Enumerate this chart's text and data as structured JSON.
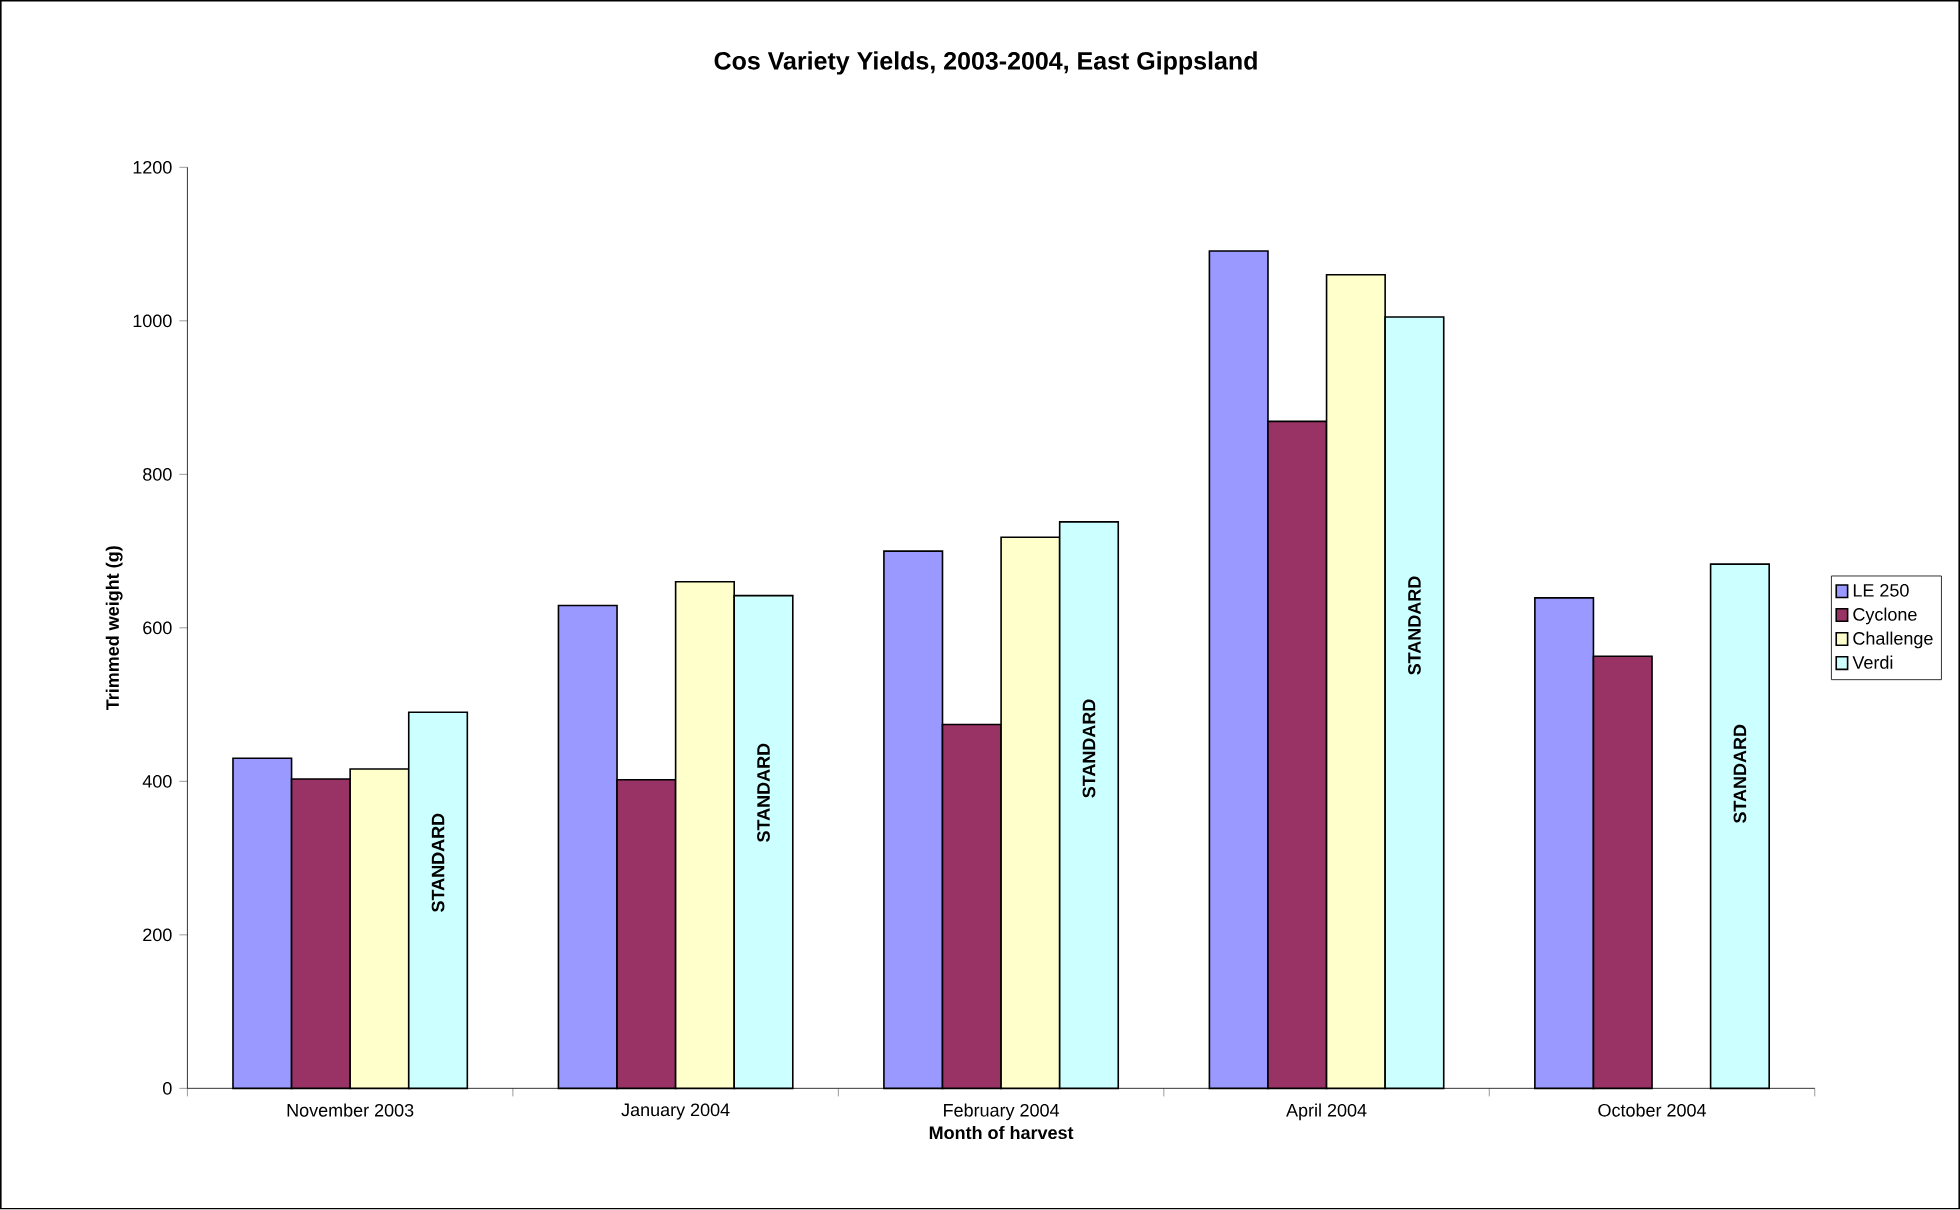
{
  "chart_data": {
    "type": "bar",
    "title": "Cos Variety Yields, 2003-2004, East Gippsland",
    "xlabel": "Month of harvest",
    "ylabel": "Trimmed weight (g)",
    "categories": [
      "November 2003",
      "January 2004",
      "February 2004",
      "April 2004",
      "October 2004"
    ],
    "series": [
      {
        "name": "LE 250",
        "color": "#9999ff",
        "values": [
          430,
          629,
          700,
          1091,
          639
        ]
      },
      {
        "name": "Cyclone",
        "color": "#993366",
        "values": [
          403,
          402,
          474,
          869,
          563
        ]
      },
      {
        "name": "Challenge",
        "color": "#ffffcc",
        "values": [
          416,
          660,
          718,
          1060,
          null
        ]
      },
      {
        "name": "Verdi",
        "color": "#ccffff",
        "values": [
          490,
          642,
          738,
          1005,
          683
        ]
      }
    ],
    "annotations": [
      "STANDARD",
      "STANDARD",
      "STANDARD",
      "STANDARD",
      "STANDARD"
    ],
    "ylim": [
      0,
      1200
    ],
    "yticks": [
      0,
      200,
      400,
      600,
      800,
      1000,
      1200
    ],
    "grid": false,
    "legend": "right"
  }
}
